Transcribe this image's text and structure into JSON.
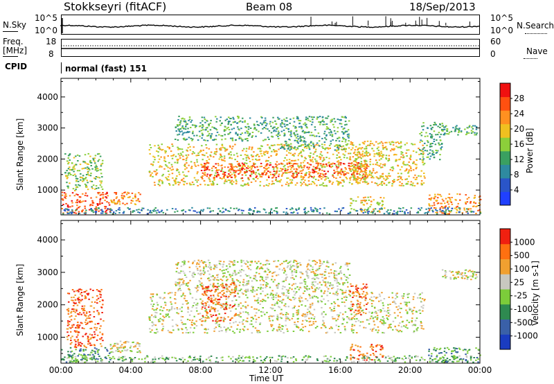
{
  "header": {
    "station": "Stokkseyri (fitACF)",
    "beam": "Beam 08",
    "date": "18/Sep/2013"
  },
  "status_panel": {
    "nsky_label": "N.Sky",
    "nsky_ticks": [
      "10^5",
      "10^0"
    ],
    "nsearch_label": "N.Search",
    "nsearch_ticks": [
      "10^5",
      "10^0"
    ],
    "freq_label_1": "Freq.",
    "freq_label_2": "[MHz]",
    "freq_ticks": [
      "18",
      "8"
    ],
    "nave_label": "Nave",
    "nave_ticks": [
      "60",
      "0"
    ],
    "cpid_label": "CPID",
    "cpid_value": "normal (fast) 151"
  },
  "chart_data": [
    {
      "type": "heatmap",
      "name": "power",
      "ylabel": "Slant Range [km]",
      "yticks": [
        1000,
        2000,
        3000,
        4000
      ],
      "ylim": [
        200,
        4600
      ],
      "xlim": [
        0,
        24
      ],
      "colorbar": {
        "label": "Power [dB]",
        "ticks": [
          "28",
          "24",
          "20",
          "16",
          "12",
          "8",
          "4"
        ],
        "colors": [
          "#2040ff",
          "#2a55c8",
          "#2e8aa0",
          "#3aa060",
          "#8ccf3a",
          "#f0c020",
          "#ff9020",
          "#ff5010",
          "#f01010"
        ]
      },
      "regions": [
        {
          "t0": 0.0,
          "t1": 2.8,
          "r0": 250,
          "r1": 950,
          "level": 7
        },
        {
          "t0": 0.2,
          "t1": 2.4,
          "r0": 1000,
          "r1": 2200,
          "level": 4
        },
        {
          "t0": 2.8,
          "t1": 4.5,
          "r0": 550,
          "r1": 950,
          "level": 6
        },
        {
          "t0": 5.0,
          "t1": 17.5,
          "r0": 1150,
          "r1": 2500,
          "level": 5
        },
        {
          "t0": 8.0,
          "t1": 17.5,
          "r0": 1400,
          "r1": 1900,
          "level": 7
        },
        {
          "t0": 6.5,
          "t1": 12.5,
          "r0": 2600,
          "r1": 3400,
          "level": 3
        },
        {
          "t0": 12.5,
          "t1": 16.5,
          "r0": 2300,
          "r1": 3400,
          "level": 3
        },
        {
          "t0": 16.5,
          "t1": 20.8,
          "r0": 1150,
          "r1": 2600,
          "level": 5
        },
        {
          "t0": 20.5,
          "t1": 21.8,
          "r0": 2000,
          "r1": 3200,
          "level": 3
        },
        {
          "t0": 21.8,
          "t1": 23.8,
          "r0": 2800,
          "r1": 3100,
          "level": 3
        },
        {
          "t0": 16.5,
          "t1": 18.5,
          "r0": 300,
          "r1": 800,
          "level": 5
        },
        {
          "t0": 21.0,
          "t1": 24.0,
          "r0": 250,
          "r1": 900,
          "level": 6
        },
        {
          "t0": 0.0,
          "t1": 24.0,
          "r0": 250,
          "r1": 450,
          "level": 2
        }
      ]
    },
    {
      "type": "heatmap",
      "name": "velocity",
      "ylabel": "Slant Range [km]",
      "xlabel": "Time UT",
      "xticks": [
        "00:00",
        "04:00",
        "08:00",
        "12:00",
        "16:00",
        "20:00",
        "00:00"
      ],
      "yticks": [
        1000,
        2000,
        3000,
        4000
      ],
      "ylim": [
        200,
        4600
      ],
      "xlim": [
        0,
        24
      ],
      "colorbar": {
        "label": "Velocity [m s-1]",
        "ticks": [
          "1000",
          "500",
          "100",
          "25",
          "-25",
          "-100",
          "-500",
          "-1000"
        ],
        "colors": [
          "#1a3cc0",
          "#3a60a8",
          "#2e8a50",
          "#7ccc3a",
          "#c8c8c0",
          "#f0a030",
          "#ff7010",
          "#f02010"
        ]
      },
      "regions": [
        {
          "t0": 0.0,
          "t1": 2.8,
          "r0": 250,
          "r1": 700,
          "level": 2
        },
        {
          "t0": 0.3,
          "t1": 2.4,
          "r0": 700,
          "r1": 2500,
          "level": 6
        },
        {
          "t0": 2.8,
          "t1": 4.5,
          "r0": 550,
          "r1": 900,
          "level": 4
        },
        {
          "t0": 5.0,
          "t1": 20.8,
          "r0": 1150,
          "r1": 2400,
          "level": 4
        },
        {
          "t0": 6.5,
          "t1": 16.5,
          "r0": 2400,
          "r1": 3400,
          "level": 4
        },
        {
          "t0": 8.0,
          "t1": 10.0,
          "r0": 1500,
          "r1": 2700,
          "level": 6
        },
        {
          "t0": 16.5,
          "t1": 17.5,
          "r0": 1700,
          "r1": 2700,
          "level": 6
        },
        {
          "t0": 16.5,
          "t1": 18.5,
          "r0": 300,
          "r1": 800,
          "level": 6
        },
        {
          "t0": 21.0,
          "t1": 24.0,
          "r0": 250,
          "r1": 700,
          "level": 2
        },
        {
          "t0": 21.8,
          "t1": 23.8,
          "r0": 2800,
          "r1": 3100,
          "level": 4
        },
        {
          "t0": 0.0,
          "t1": 24.0,
          "r0": 250,
          "r1": 450,
          "level": 3
        }
      ]
    }
  ]
}
